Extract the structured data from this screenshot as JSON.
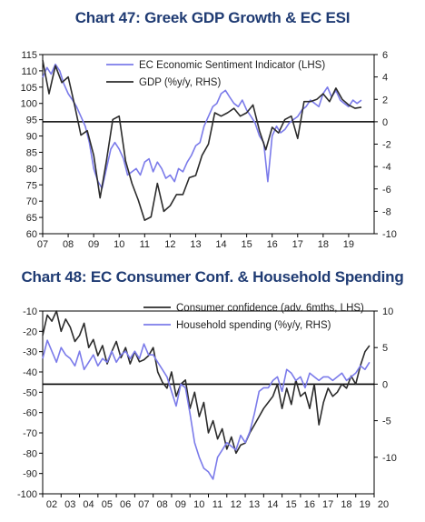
{
  "charts_meta": {
    "title_1": "Chart 47: Greek GDP Growth & EC ESI",
    "title_2": "Chart 48: EC Consumer Conf. & Household Spending"
  },
  "chart_data": [
    {
      "type": "line",
      "title": "Chart 47: Greek GDP Growth & EC ESI",
      "x_ticks": [
        "07",
        "08",
        "09",
        "10",
        "11",
        "12",
        "13",
        "14",
        "15",
        "16",
        "17",
        "18",
        "19"
      ],
      "x_range": [
        2007.0,
        2020.0
      ],
      "y_left": {
        "ticks": [
          60,
          65,
          70,
          75,
          80,
          85,
          90,
          95,
          100,
          105,
          110,
          115
        ],
        "range": [
          60,
          115
        ]
      },
      "y_right": {
        "ticks": [
          -10,
          -8,
          -6,
          -4,
          -2,
          0,
          2,
          4,
          6
        ],
        "range": [
          -10,
          6
        ]
      },
      "legend_position": "top-right",
      "series": [
        {
          "name": "EC Economic Sentiment Indicator (LHS)",
          "axis": "left",
          "color": "#7b7bea",
          "x": [
            2007.0,
            2007.17,
            2007.33,
            2007.5,
            2007.67,
            2007.83,
            2008.0,
            2008.17,
            2008.33,
            2008.5,
            2008.67,
            2008.83,
            2009.0,
            2009.17,
            2009.33,
            2009.5,
            2009.67,
            2009.83,
            2010.0,
            2010.17,
            2010.33,
            2010.5,
            2010.67,
            2010.83,
            2011.0,
            2011.17,
            2011.33,
            2011.5,
            2011.67,
            2011.83,
            2012.0,
            2012.17,
            2012.33,
            2012.5,
            2012.67,
            2012.83,
            2013.0,
            2013.17,
            2013.33,
            2013.5,
            2013.67,
            2013.83,
            2014.0,
            2014.17,
            2014.33,
            2014.5,
            2014.67,
            2014.83,
            2015.0,
            2015.17,
            2015.33,
            2015.5,
            2015.67,
            2015.83,
            2016.0,
            2016.17,
            2016.33,
            2016.5,
            2016.67,
            2016.83,
            2017.0,
            2017.17,
            2017.33,
            2017.5,
            2017.67,
            2017.83,
            2018.0,
            2018.17,
            2018.33,
            2018.5,
            2018.67,
            2018.83,
            2019.0,
            2019.17,
            2019.33,
            2019.5
          ],
          "values": [
            108,
            111,
            109,
            112,
            110,
            106,
            103,
            101,
            99,
            96,
            93,
            88,
            80,
            76,
            74,
            80,
            86,
            88,
            86,
            83,
            78,
            79,
            80,
            78,
            82,
            83,
            79,
            82,
            80,
            77,
            78,
            76,
            80,
            79,
            82,
            84,
            87,
            88,
            93,
            96,
            99,
            100,
            103,
            104,
            102,
            100,
            99,
            101,
            98,
            96,
            94,
            90,
            88,
            76,
            90,
            93,
            91,
            92,
            94,
            95,
            96,
            98,
            99,
            101,
            100,
            99,
            103,
            105,
            102,
            104,
            101,
            100,
            99,
            101,
            100,
            101
          ]
        },
        {
          "name": "GDP (%y/y, RHS)",
          "axis": "right",
          "color": "#2b2b2b",
          "x": [
            2007.0,
            2007.25,
            2007.5,
            2007.75,
            2008.0,
            2008.25,
            2008.5,
            2008.75,
            2009.0,
            2009.25,
            2009.5,
            2009.75,
            2010.0,
            2010.25,
            2010.5,
            2010.75,
            2011.0,
            2011.25,
            2011.5,
            2011.75,
            2012.0,
            2012.25,
            2012.5,
            2012.75,
            2013.0,
            2013.25,
            2013.5,
            2013.75,
            2014.0,
            2014.25,
            2014.5,
            2014.75,
            2015.0,
            2015.25,
            2015.5,
            2015.75,
            2016.0,
            2016.25,
            2016.5,
            2016.75,
            2017.0,
            2017.25,
            2017.5,
            2017.75,
            2018.0,
            2018.25,
            2018.5,
            2018.75,
            2019.0,
            2019.25,
            2019.5
          ],
          "values": [
            5.5,
            2.5,
            5.0,
            3.5,
            4.0,
            1.5,
            -1.2,
            -0.8,
            -3.0,
            -6.8,
            -3.5,
            0.2,
            0.5,
            -3.5,
            -5.5,
            -7.0,
            -8.8,
            -8.5,
            -5.5,
            -8.0,
            -7.5,
            -6.5,
            -6.5,
            -5.0,
            -4.8,
            -3.0,
            -2.0,
            0.8,
            0.5,
            0.8,
            1.2,
            0.5,
            0.8,
            1.5,
            -0.8,
            -2.5,
            -0.5,
            -1.0,
            0.2,
            0.5,
            -1.5,
            1.8,
            1.8,
            2.0,
            2.5,
            1.8,
            3.0,
            2.0,
            1.5,
            1.2,
            1.3
          ]
        }
      ]
    },
    {
      "type": "line",
      "title": "Chart 48: EC Consumer Conf. & Household Spending",
      "x_ticks": [
        "02",
        "03",
        "04",
        "05",
        "06",
        "07",
        "08",
        "09",
        "10",
        "11",
        "12",
        "13",
        "14",
        "15",
        "16",
        "17",
        "18",
        "19",
        "20"
      ],
      "x_range": [
        2002.0,
        2020.0
      ],
      "y_left": {
        "ticks": [
          -100,
          -90,
          -80,
          -70,
          -60,
          -50,
          -40,
          -30,
          -20,
          -10
        ],
        "range": [
          -100,
          -10
        ]
      },
      "y_right": {
        "ticks": [
          -10,
          -5,
          0,
          5,
          10
        ],
        "range": [
          -15,
          10
        ]
      },
      "legend_position": "top-right",
      "series": [
        {
          "name": "Consumer confidence (adv. 6mths, LHS)",
          "axis": "left",
          "color": "#2b2b2b",
          "x": [
            2002.0,
            2002.25,
            2002.5,
            2002.75,
            2003.0,
            2003.25,
            2003.5,
            2003.75,
            2004.0,
            2004.25,
            2004.5,
            2004.75,
            2005.0,
            2005.25,
            2005.5,
            2005.75,
            2006.0,
            2006.25,
            2006.5,
            2006.75,
            2007.0,
            2007.25,
            2007.5,
            2007.75,
            2008.0,
            2008.25,
            2008.5,
            2008.75,
            2009.0,
            2009.25,
            2009.5,
            2009.75,
            2010.0,
            2010.25,
            2010.5,
            2010.75,
            2011.0,
            2011.25,
            2011.5,
            2011.75,
            2012.0,
            2012.25,
            2012.5,
            2012.75,
            2013.0,
            2013.25,
            2013.5,
            2013.75,
            2014.0,
            2014.25,
            2014.5,
            2014.75,
            2015.0,
            2015.25,
            2015.5,
            2015.75,
            2016.0,
            2016.25,
            2016.5,
            2016.75,
            2017.0,
            2017.25,
            2017.5,
            2017.75,
            2018.0,
            2018.25,
            2018.5,
            2018.75,
            2019.0,
            2019.25,
            2019.5,
            2019.75
          ],
          "values": [
            -22,
            -12,
            -15,
            -10,
            -20,
            -14,
            -18,
            -25,
            -22,
            -16,
            -28,
            -24,
            -32,
            -27,
            -36,
            -30,
            -25,
            -33,
            -28,
            -36,
            -30,
            -35,
            -34,
            -32,
            -28,
            -40,
            -45,
            -48,
            -40,
            -52,
            -46,
            -44,
            -58,
            -50,
            -62,
            -55,
            -70,
            -64,
            -73,
            -68,
            -78,
            -72,
            -80,
            -76,
            -75,
            -70,
            -66,
            -62,
            -58,
            -55,
            -52,
            -46,
            -58,
            -48,
            -56,
            -44,
            -52,
            -50,
            -58,
            -46,
            -66,
            -55,
            -48,
            -52,
            -50,
            -46,
            -48,
            -42,
            -46,
            -37,
            -30,
            -27
          ]
        },
        {
          "name": "Household spending (%y/y, RHS)",
          "axis": "right",
          "color": "#7b7bea",
          "x": [
            2002.0,
            2002.25,
            2002.5,
            2002.75,
            2003.0,
            2003.25,
            2003.5,
            2003.75,
            2004.0,
            2004.25,
            2004.5,
            2004.75,
            2005.0,
            2005.25,
            2005.5,
            2005.75,
            2006.0,
            2006.25,
            2006.5,
            2006.75,
            2007.0,
            2007.25,
            2007.5,
            2007.75,
            2008.0,
            2008.25,
            2008.5,
            2008.75,
            2009.0,
            2009.25,
            2009.5,
            2009.75,
            2010.0,
            2010.25,
            2010.5,
            2010.75,
            2011.0,
            2011.25,
            2011.5,
            2011.75,
            2012.0,
            2012.25,
            2012.5,
            2012.75,
            2013.0,
            2013.25,
            2013.5,
            2013.75,
            2014.0,
            2014.25,
            2014.5,
            2014.75,
            2015.0,
            2015.25,
            2015.5,
            2015.75,
            2016.0,
            2016.25,
            2016.5,
            2016.75,
            2017.0,
            2017.25,
            2017.5,
            2017.75,
            2018.0,
            2018.25,
            2018.5,
            2018.75,
            2019.0,
            2019.25,
            2019.5,
            2019.75
          ],
          "values": [
            3.5,
            6.0,
            4.5,
            3.0,
            5.0,
            4.0,
            3.5,
            2.5,
            4.5,
            2.0,
            3.0,
            4.0,
            2.5,
            3.5,
            3.0,
            4.5,
            3.0,
            4.0,
            4.5,
            3.5,
            4.5,
            3.5,
            5.5,
            4.0,
            4.0,
            3.0,
            2.0,
            1.0,
            -1.0,
            -3.0,
            0.0,
            -0.5,
            -4.0,
            -8.0,
            -10.0,
            -11.5,
            -12.0,
            -13.0,
            -10.0,
            -9.0,
            -8.0,
            -8.5,
            -9.0,
            -7.0,
            -8.0,
            -6.5,
            -4.0,
            -1.0,
            -0.5,
            -0.5,
            0.5,
            1.0,
            -1.0,
            2.0,
            1.5,
            0.5,
            1.0,
            -0.5,
            1.5,
            1.0,
            0.5,
            1.0,
            1.0,
            0.5,
            1.0,
            1.5,
            0.5,
            1.0,
            1.5,
            2.5,
            2.0,
            3.0
          ]
        }
      ]
    }
  ]
}
